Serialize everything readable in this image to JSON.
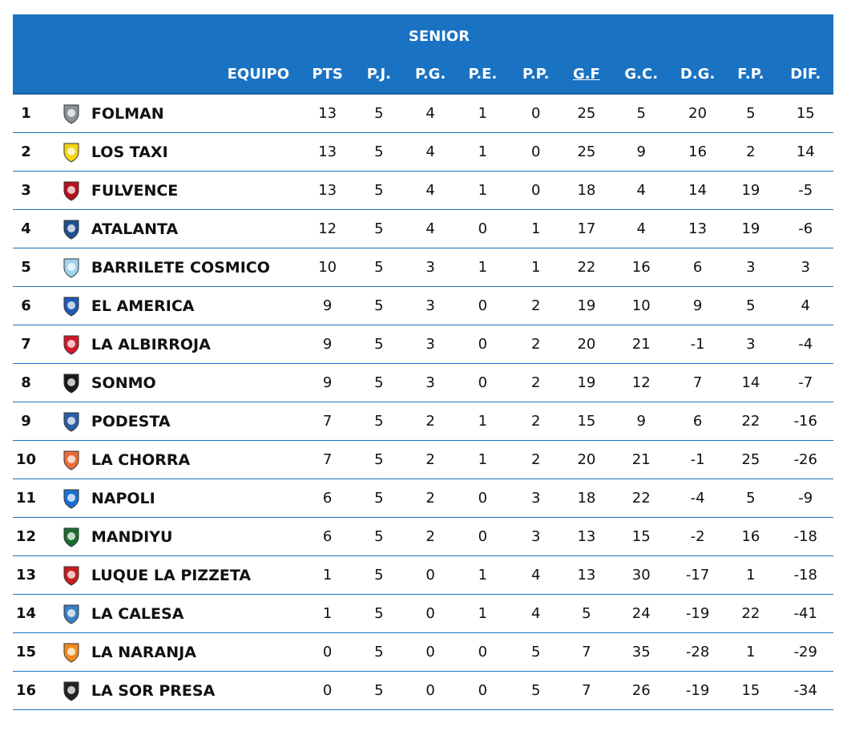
{
  "table": {
    "title": "SENIOR",
    "headers": {
      "equipo": "EQUIPO",
      "pts": "PTS",
      "pj": "P.J.",
      "pg": "P.G.",
      "pe": "P.E.",
      "pp": "P.P.",
      "gf": "G.F",
      "gc": "G.C.",
      "dg": "D.G.",
      "fp": "F.P.",
      "dif": "DIF."
    },
    "rows": [
      {
        "pos": "1",
        "team": "FOLMAN",
        "icon": "folman-crest-icon",
        "color": "#8a8f99",
        "pts": "13",
        "pj": "5",
        "pg": "4",
        "pe": "1",
        "pp": "0",
        "gf": "25",
        "gc": "5",
        "dg": "20",
        "fp": "5",
        "dif": "15"
      },
      {
        "pos": "2",
        "team": "LOS TAXI",
        "icon": "los-taxi-crest-icon",
        "color": "#f2d50f",
        "pts": "13",
        "pj": "5",
        "pg": "4",
        "pe": "1",
        "pp": "0",
        "gf": "25",
        "gc": "9",
        "dg": "16",
        "fp": "2",
        "dif": "14"
      },
      {
        "pos": "3",
        "team": "FULVENCE",
        "icon": "fulvence-crest-icon",
        "color": "#b5121b",
        "pts": "13",
        "pj": "5",
        "pg": "4",
        "pe": "1",
        "pp": "0",
        "gf": "18",
        "gc": "4",
        "dg": "14",
        "fp": "19",
        "dif": "-5"
      },
      {
        "pos": "4",
        "team": "ATALANTA",
        "icon": "atalanta-crest-icon",
        "color": "#1d4f91",
        "pts": "12",
        "pj": "5",
        "pg": "4",
        "pe": "0",
        "pp": "1",
        "gf": "17",
        "gc": "4",
        "dg": "13",
        "fp": "19",
        "dif": "-6"
      },
      {
        "pos": "5",
        "team": "BARRILETE COSMICO",
        "icon": "barrilete-cosmico-crest-icon",
        "color": "#9fd3ee",
        "pts": "10",
        "pj": "5",
        "pg": "3",
        "pe": "1",
        "pp": "1",
        "gf": "22",
        "gc": "16",
        "dg": "6",
        "fp": "3",
        "dif": "3"
      },
      {
        "pos": "6",
        "team": "EL AMERICA",
        "icon": "el-america-crest-icon",
        "color": "#1e5bb0",
        "pts": "9",
        "pj": "5",
        "pg": "3",
        "pe": "0",
        "pp": "2",
        "gf": "19",
        "gc": "10",
        "dg": "9",
        "fp": "5",
        "dif": "4"
      },
      {
        "pos": "7",
        "team": "LA ALBIRROJA",
        "icon": "la-albirroja-crest-icon",
        "color": "#d0192a",
        "pts": "9",
        "pj": "5",
        "pg": "3",
        "pe": "0",
        "pp": "2",
        "gf": "20",
        "gc": "21",
        "dg": "-1",
        "fp": "3",
        "dif": "-4"
      },
      {
        "pos": "8",
        "team": "SONMO",
        "icon": "sonmo-crest-icon",
        "color": "#1a1a1a",
        "pts": "9",
        "pj": "5",
        "pg": "3",
        "pe": "0",
        "pp": "2",
        "gf": "19",
        "gc": "12",
        "dg": "7",
        "fp": "14",
        "dif": "-7"
      },
      {
        "pos": "9",
        "team": "PODESTA",
        "icon": "podesta-crest-icon",
        "color": "#2a5ea8",
        "pts": "7",
        "pj": "5",
        "pg": "2",
        "pe": "1",
        "pp": "2",
        "gf": "15",
        "gc": "9",
        "dg": "6",
        "fp": "22",
        "dif": "-16"
      },
      {
        "pos": "10",
        "team": "LA CHORRA",
        "icon": "la-chorra-crest-icon",
        "color": "#ef6b3a",
        "pts": "7",
        "pj": "5",
        "pg": "2",
        "pe": "1",
        "pp": "2",
        "gf": "20",
        "gc": "21",
        "dg": "-1",
        "fp": "25",
        "dif": "-26"
      },
      {
        "pos": "11",
        "team": "NAPOLI",
        "icon": "napoli-crest-icon",
        "color": "#1a6fd1",
        "pts": "6",
        "pj": "5",
        "pg": "2",
        "pe": "0",
        "pp": "3",
        "gf": "18",
        "gc": "22",
        "dg": "-4",
        "fp": "5",
        "dif": "-9"
      },
      {
        "pos": "12",
        "team": "MANDIYU",
        "icon": "mandiyu-crest-icon",
        "color": "#1b6b2f",
        "pts": "6",
        "pj": "5",
        "pg": "2",
        "pe": "0",
        "pp": "3",
        "gf": "13",
        "gc": "15",
        "dg": "-2",
        "fp": "16",
        "dif": "-18"
      },
      {
        "pos": "13",
        "team": "LUQUE LA PIZZETA",
        "icon": "luque-la-pizzeta-crest-icon",
        "color": "#c81e1e",
        "pts": "1",
        "pj": "5",
        "pg": "0",
        "pe": "1",
        "pp": "4",
        "gf": "13",
        "gc": "30",
        "dg": "-17",
        "fp": "1",
        "dif": "-18"
      },
      {
        "pos": "14",
        "team": "LA CALESA",
        "icon": "la-calesa-crest-icon",
        "color": "#3b7fc4",
        "pts": "1",
        "pj": "5",
        "pg": "0",
        "pe": "1",
        "pp": "4",
        "gf": "5",
        "gc": "24",
        "dg": "-19",
        "fp": "22",
        "dif": "-41"
      },
      {
        "pos": "15",
        "team": "LA NARANJA",
        "icon": "la-naranja-crest-icon",
        "color": "#f28a1e",
        "pts": "0",
        "pj": "5",
        "pg": "0",
        "pe": "0",
        "pp": "5",
        "gf": "7",
        "gc": "35",
        "dg": "-28",
        "fp": "1",
        "dif": "-29"
      },
      {
        "pos": "16",
        "team": "LA SOR PRESA",
        "icon": "la-sor-presa-crest-icon",
        "color": "#222222",
        "pts": "0",
        "pj": "5",
        "pg": "0",
        "pe": "0",
        "pp": "5",
        "gf": "7",
        "gc": "26",
        "dg": "-19",
        "fp": "15",
        "dif": "-34"
      }
    ]
  }
}
